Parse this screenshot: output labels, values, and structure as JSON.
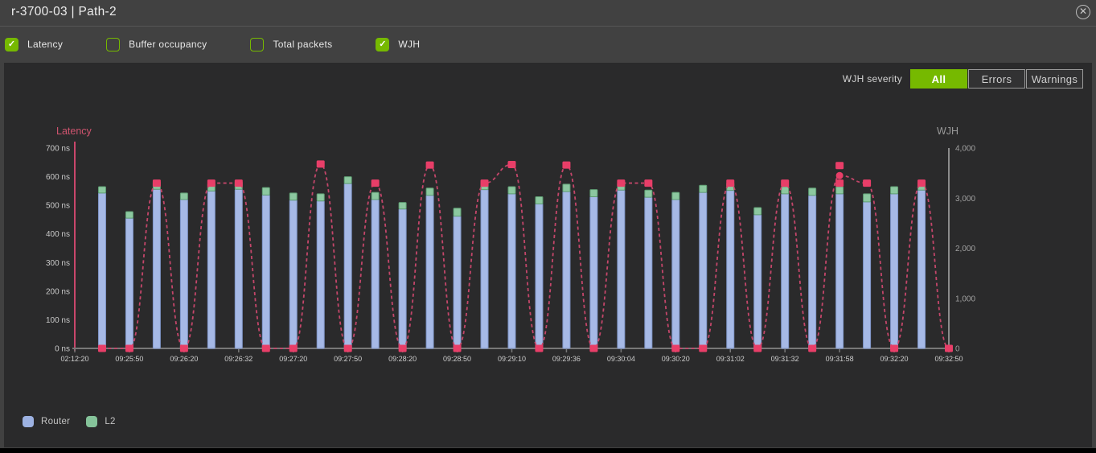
{
  "header": {
    "title": "r-3700-03 | Path-2",
    "close_glyph": "✕"
  },
  "filters": {
    "items": [
      {
        "label": "Latency",
        "checked": true
      },
      {
        "label": "Buffer occupancy",
        "checked": false
      },
      {
        "label": "Total packets",
        "checked": false
      },
      {
        "label": "WJH",
        "checked": true
      }
    ],
    "check_glyph": "✓"
  },
  "severity": {
    "label": "WJH severity",
    "options": [
      {
        "label": "All",
        "selected": true
      },
      {
        "label": "Errors",
        "selected": false
      },
      {
        "label": "Warnings",
        "selected": false
      }
    ]
  },
  "legend": [
    {
      "label": "Router",
      "color": "#9db2e2"
    },
    {
      "label": "L2",
      "color": "#85c39a"
    }
  ],
  "colors": {
    "accent_green": "#76b900",
    "latency_axis_pink": "#c9466b",
    "latency_label_pink": "#d0546f",
    "wjh_line": "#c4466a",
    "wjh_marker": "#e83e68",
    "router_blue_fill": "#a6b9e6",
    "router_blue_stroke": "#8096c8",
    "l2_green_fill": "#8cc8a0",
    "l2_green_stroke": "#5f9e73",
    "axis_gray": "#8c8c8c",
    "tick_text": "#c9c9c9",
    "panel_bg": "#2a2a2b",
    "frame_bg": "#414141"
  },
  "chart_data": {
    "type": "bar+line",
    "title": "",
    "left_axis": {
      "label": "Latency",
      "range": [
        0,
        700
      ],
      "ticks": [
        "0 ns",
        "100 ns",
        "200 ns",
        "300 ns",
        "400 ns",
        "500 ns",
        "600 ns",
        "700 ns"
      ]
    },
    "right_axis": {
      "label": "WJH",
      "range": [
        0,
        4000
      ],
      "ticks": [
        "0",
        "1,000",
        "2,000",
        "3,000",
        "4,000"
      ]
    },
    "x_ticks": [
      {
        "slot": 0,
        "label": "02:12:20"
      },
      {
        "slot": 2,
        "label": "09:25:50"
      },
      {
        "slot": 4,
        "label": "09:26:20"
      },
      {
        "slot": 6,
        "label": "09:26:32"
      },
      {
        "slot": 8,
        "label": "09:27:20"
      },
      {
        "slot": 10,
        "label": "09:27:50"
      },
      {
        "slot": 12,
        "label": "09:28:20"
      },
      {
        "slot": 14,
        "label": "09:28:50"
      },
      {
        "slot": 16,
        "label": "09:29:10"
      },
      {
        "slot": 18,
        "label": "09:29:36"
      },
      {
        "slot": 20,
        "label": "09:30:04"
      },
      {
        "slot": 22,
        "label": "09:30:20"
      },
      {
        "slot": 24,
        "label": "09:31:02"
      },
      {
        "slot": 26,
        "label": "09:31:32"
      },
      {
        "slot": 28,
        "label": "09:31:58"
      },
      {
        "slot": 30,
        "label": "09:32:20"
      },
      {
        "slot": 32,
        "label": "09:32:50"
      }
    ],
    "bar_series": [
      "Router",
      "L2"
    ],
    "bars": [
      {
        "router": 543,
        "l2": 22
      },
      {
        "router": 455,
        "l2": 23
      },
      {
        "router": 556,
        "l2": 26
      },
      {
        "router": 520,
        "l2": 23
      },
      {
        "router": 550,
        "l2": 26
      },
      {
        "router": 556,
        "l2": 26
      },
      {
        "router": 536,
        "l2": 26
      },
      {
        "router": 518,
        "l2": 25
      },
      {
        "router": 515,
        "l2": 25
      },
      {
        "router": 576,
        "l2": 24
      },
      {
        "router": 520,
        "l2": 25
      },
      {
        "router": 487,
        "l2": 23
      },
      {
        "router": 535,
        "l2": 25
      },
      {
        "router": 462,
        "l2": 28
      },
      {
        "router": 555,
        "l2": 25
      },
      {
        "router": 540,
        "l2": 25
      },
      {
        "router": 505,
        "l2": 25
      },
      {
        "router": 548,
        "l2": 26
      },
      {
        "router": 530,
        "l2": 25
      },
      {
        "router": 553,
        "l2": 25
      },
      {
        "router": 528,
        "l2": 25
      },
      {
        "router": 520,
        "l2": 25
      },
      {
        "router": 545,
        "l2": 25
      },
      {
        "router": 552,
        "l2": 26
      },
      {
        "router": 467,
        "l2": 25
      },
      {
        "router": 540,
        "l2": 25
      },
      {
        "router": 535,
        "l2": 25
      },
      {
        "router": 540,
        "l2": 25
      },
      {
        "router": 512,
        "l2": 28
      },
      {
        "router": 540,
        "l2": 25
      },
      {
        "router": 553,
        "l2": 27
      }
    ],
    "wjh_line": {
      "points": [
        {
          "slot": 1,
          "v": 0
        },
        {
          "slot": 2,
          "v": 0
        },
        {
          "slot": 3,
          "v": 3300
        },
        {
          "slot": 4,
          "v": 0
        },
        {
          "slot": 5,
          "v": 3300
        },
        {
          "slot": 6,
          "v": 3300
        },
        {
          "slot": 7,
          "v": 0
        },
        {
          "slot": 8,
          "v": 0
        },
        {
          "slot": 9,
          "v": 3680
        },
        {
          "slot": 10,
          "v": 0
        },
        {
          "slot": 11,
          "v": 3300
        },
        {
          "slot": 12,
          "v": 0
        },
        {
          "slot": 13,
          "v": 3660
        },
        {
          "slot": 14,
          "v": 0
        },
        {
          "slot": 15,
          "v": 3300
        },
        {
          "slot": 16,
          "v": 3670
        },
        {
          "slot": 17,
          "v": 0
        },
        {
          "slot": 18,
          "v": 3660
        },
        {
          "slot": 19,
          "v": 0
        },
        {
          "slot": 20,
          "v": 3300
        },
        {
          "slot": 21,
          "v": 3300
        },
        {
          "slot": 22,
          "v": 0
        },
        {
          "slot": 23,
          "v": 0
        },
        {
          "slot": 24,
          "v": 3300
        },
        {
          "slot": 25,
          "v": 0
        },
        {
          "slot": 26,
          "v": 3300
        },
        {
          "slot": 27,
          "v": 0
        },
        {
          "slot": 28,
          "v": 3450,
          "shape": "circle"
        },
        {
          "slot": 29,
          "v": 3300
        },
        {
          "slot": 30,
          "v": 0
        },
        {
          "slot": 31,
          "v": 3300
        },
        {
          "slot": 32,
          "v": 0
        }
      ],
      "extra_markers": [
        {
          "slot": 28,
          "v": 3650
        },
        {
          "slot": 28,
          "v": 3300
        }
      ]
    }
  }
}
